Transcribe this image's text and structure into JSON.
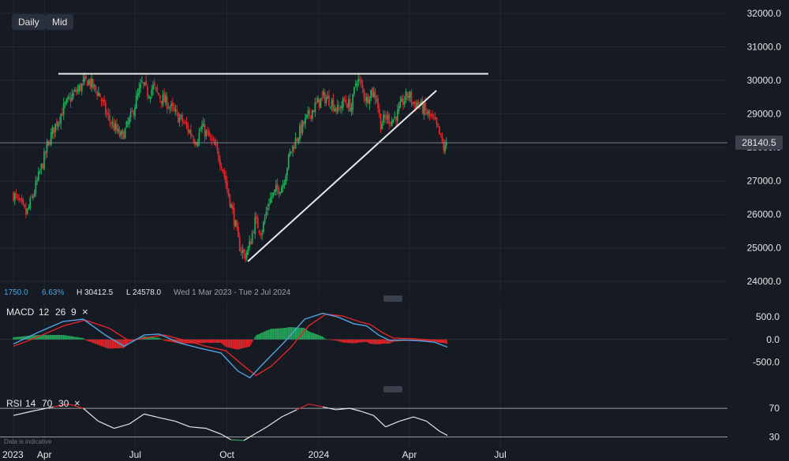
{
  "toolbar": {
    "daily_label": "Daily",
    "mid_label": "Mid"
  },
  "price_label": "28140.5",
  "info_bar": {
    "change": "1750.0",
    "change_pct": "6.63%",
    "high": "H 30412.5",
    "low": "L 24578.0",
    "range": "Wed 1 Mar 2023 - Tue 2 Jul 2024"
  },
  "macd_label": {
    "name": "MACD",
    "p1": "12",
    "p2": "26",
    "p3": "9",
    "close": "×"
  },
  "rsi_label": {
    "name": "RSI",
    "p1": "14",
    "p2": "70",
    "p3": "30",
    "close": "×"
  },
  "footer_note": "Data is indicative",
  "colors": {
    "up": "#26a65b",
    "down": "#e0262a",
    "macd": "#4fa3e0",
    "signal": "#e0262a",
    "background": "#151a23"
  },
  "chart_data": [
    {
      "type": "candlestick",
      "pane": "price",
      "yticks": [
        "32000.0",
        "31000.0",
        "30000.0",
        "29000.0",
        "28000.0",
        "27000.0",
        "26000.0",
        "25000.0",
        "24000.0"
      ],
      "ytick_values": [
        32000,
        31000,
        30000,
        29000,
        28000,
        27000,
        26000,
        25000,
        24000
      ],
      "ylim": [
        23700,
        32400
      ],
      "xticks": [
        "2023",
        "Apr",
        "Jul",
        "Oct",
        "2024",
        "Apr",
        "Jul"
      ],
      "xtick_dates": [
        "2023-03-01",
        "2023-04-01",
        "2023-07-01",
        "2023-10-01",
        "2024-01-01",
        "2024-04-01",
        "2024-07-01"
      ],
      "last_price": 28140.5,
      "close_path": [
        [
          "2023-03-01",
          26600
        ],
        [
          "2023-03-08",
          26300
        ],
        [
          "2023-03-14",
          26000
        ],
        [
          "2023-03-22",
          26700
        ],
        [
          "2023-03-30",
          27500
        ],
        [
          "2023-04-07",
          28300
        ],
        [
          "2023-04-14",
          28800
        ],
        [
          "2023-04-21",
          29200
        ],
        [
          "2023-04-28",
          29500
        ],
        [
          "2023-05-04",
          29700
        ],
        [
          "2023-05-10",
          29900
        ],
        [
          "2023-05-15",
          30000
        ],
        [
          "2023-05-20",
          29800
        ],
        [
          "2023-05-26",
          29600
        ],
        [
          "2023-06-02",
          29000
        ],
        [
          "2023-06-10",
          28600
        ],
        [
          "2023-06-17",
          28300
        ],
        [
          "2023-06-21",
          28500
        ],
        [
          "2023-06-28",
          29000
        ],
        [
          "2023-07-03",
          29500
        ],
        [
          "2023-07-08",
          29900
        ],
        [
          "2023-07-14",
          29600
        ],
        [
          "2023-07-19",
          29800
        ],
        [
          "2023-07-26",
          29500
        ],
        [
          "2023-08-03",
          29300
        ],
        [
          "2023-08-10",
          29000
        ],
        [
          "2023-08-17",
          28800
        ],
        [
          "2023-08-24",
          28500
        ],
        [
          "2023-08-31",
          28200
        ],
        [
          "2023-09-06",
          28600
        ],
        [
          "2023-09-13",
          28300
        ],
        [
          "2023-09-19",
          28000
        ],
        [
          "2023-09-26",
          27500
        ],
        [
          "2023-10-01",
          26800
        ],
        [
          "2023-10-08",
          25900
        ],
        [
          "2023-10-13",
          25100
        ],
        [
          "2023-10-19",
          24750
        ],
        [
          "2023-10-24",
          25100
        ],
        [
          "2023-10-29",
          25800
        ],
        [
          "2023-11-05",
          25500
        ],
        [
          "2023-11-12",
          26400
        ],
        [
          "2023-11-19",
          26700
        ],
        [
          "2023-11-26",
          26900
        ],
        [
          "2023-12-03",
          27800
        ],
        [
          "2023-12-10",
          28300
        ],
        [
          "2023-12-17",
          28700
        ],
        [
          "2023-12-23",
          29000
        ],
        [
          "2023-12-30",
          29300
        ],
        [
          "2024-01-06",
          29500
        ],
        [
          "2024-01-13",
          29400
        ],
        [
          "2024-01-20",
          29100
        ],
        [
          "2024-01-27",
          29400
        ],
        [
          "2024-02-03",
          29200
        ],
        [
          "2024-02-08",
          30100
        ],
        [
          "2024-02-13",
          29800
        ],
        [
          "2024-02-18",
          29400
        ],
        [
          "2024-02-22",
          29700
        ],
        [
          "2024-02-28",
          29500
        ],
        [
          "2024-03-03",
          28700
        ],
        [
          "2024-03-09",
          28900
        ],
        [
          "2024-03-14",
          28800
        ],
        [
          "2024-03-20",
          29000
        ],
        [
          "2024-03-26",
          29400
        ],
        [
          "2024-03-31",
          29600
        ],
        [
          "2024-04-05",
          29300
        ],
        [
          "2024-04-11",
          29300
        ],
        [
          "2024-04-16",
          29100
        ],
        [
          "2024-04-22",
          28900
        ],
        [
          "2024-04-27",
          28700
        ],
        [
          "2024-05-02",
          28300
        ],
        [
          "2024-05-06",
          27900
        ],
        [
          "2024-05-09",
          28140.5
        ]
      ],
      "resistance_line": [
        [
          "2023-04-15",
          30200
        ],
        [
          "2024-06-19",
          30200
        ]
      ],
      "support_line": [
        [
          "2023-10-22",
          24600
        ],
        [
          "2024-04-28",
          29700
        ]
      ]
    },
    {
      "type": "line",
      "pane": "macd",
      "title": "MACD 12 26 9",
      "yticks": [
        "500.0",
        "0.0",
        "-500.0"
      ],
      "ytick_values": [
        500,
        0,
        -500
      ],
      "ylim": [
        -1000,
        800
      ],
      "macd_path": [
        [
          "2023-03-01",
          -100
        ],
        [
          "2023-03-25",
          150
        ],
        [
          "2023-04-20",
          400
        ],
        [
          "2023-05-10",
          450
        ],
        [
          "2023-06-01",
          100
        ],
        [
          "2023-06-20",
          -150
        ],
        [
          "2023-07-10",
          100
        ],
        [
          "2023-07-25",
          120
        ],
        [
          "2023-08-15",
          -80
        ],
        [
          "2023-09-05",
          -200
        ],
        [
          "2023-09-25",
          -300
        ],
        [
          "2023-10-12",
          -700
        ],
        [
          "2023-10-24",
          -850
        ],
        [
          "2023-11-08",
          -500
        ],
        [
          "2023-11-28",
          -50
        ],
        [
          "2023-12-18",
          450
        ],
        [
          "2024-01-05",
          580
        ],
        [
          "2024-01-20",
          500
        ],
        [
          "2024-02-05",
          350
        ],
        [
          "2024-02-18",
          300
        ],
        [
          "2024-03-01",
          100
        ],
        [
          "2024-03-12",
          -20
        ],
        [
          "2024-03-28",
          -10
        ],
        [
          "2024-04-12",
          -30
        ],
        [
          "2024-04-26",
          -60
        ],
        [
          "2024-05-09",
          -170
        ]
      ],
      "signal_path": [
        [
          "2023-03-01",
          -150
        ],
        [
          "2023-03-25",
          50
        ],
        [
          "2023-04-20",
          300
        ],
        [
          "2023-05-12",
          430
        ],
        [
          "2023-06-05",
          250
        ],
        [
          "2023-06-25",
          -30
        ],
        [
          "2023-07-15",
          50
        ],
        [
          "2023-07-30",
          100
        ],
        [
          "2023-08-20",
          -20
        ],
        [
          "2023-09-10",
          -150
        ],
        [
          "2023-09-30",
          -250
        ],
        [
          "2023-10-16",
          -550
        ],
        [
          "2023-10-30",
          -800
        ],
        [
          "2023-11-14",
          -600
        ],
        [
          "2023-12-03",
          -200
        ],
        [
          "2023-12-22",
          300
        ],
        [
          "2024-01-08",
          560
        ],
        [
          "2024-01-25",
          520
        ],
        [
          "2024-02-10",
          400
        ],
        [
          "2024-02-22",
          330
        ],
        [
          "2024-03-05",
          150
        ],
        [
          "2024-03-16",
          30
        ],
        [
          "2024-04-01",
          20
        ],
        [
          "2024-04-15",
          0
        ],
        [
          "2024-04-30",
          -20
        ],
        [
          "2024-05-09",
          -90
        ]
      ]
    },
    {
      "type": "line",
      "pane": "rsi",
      "title": "RSI 14 70 30",
      "yticks": [
        "70",
        "30"
      ],
      "ytick_values": [
        70,
        30
      ],
      "ylim": [
        15,
        90
      ],
      "rsi_path": [
        [
          "2023-03-01",
          60
        ],
        [
          "2023-03-20",
          66
        ],
        [
          "2023-04-10",
          72
        ],
        [
          "2023-04-25",
          76
        ],
        [
          "2023-05-10",
          70
        ],
        [
          "2023-05-25",
          52
        ],
        [
          "2023-06-10",
          42
        ],
        [
          "2023-06-25",
          48
        ],
        [
          "2023-07-10",
          62
        ],
        [
          "2023-07-25",
          57
        ],
        [
          "2023-08-10",
          52
        ],
        [
          "2023-08-25",
          44
        ],
        [
          "2023-09-10",
          42
        ],
        [
          "2023-09-25",
          34
        ],
        [
          "2023-10-05",
          26
        ],
        [
          "2023-10-18",
          25
        ],
        [
          "2023-10-30",
          35
        ],
        [
          "2023-11-10",
          44
        ],
        [
          "2023-11-25",
          58
        ],
        [
          "2023-12-10",
          68
        ],
        [
          "2023-12-22",
          76
        ],
        [
          "2024-01-05",
          72
        ],
        [
          "2024-01-18",
          68
        ],
        [
          "2024-02-01",
          70
        ],
        [
          "2024-02-12",
          66
        ],
        [
          "2024-02-25",
          60
        ],
        [
          "2024-03-08",
          44
        ],
        [
          "2024-03-22",
          52
        ],
        [
          "2024-04-05",
          58
        ],
        [
          "2024-04-18",
          52
        ],
        [
          "2024-05-01",
          38
        ],
        [
          "2024-05-09",
          32
        ]
      ]
    }
  ]
}
